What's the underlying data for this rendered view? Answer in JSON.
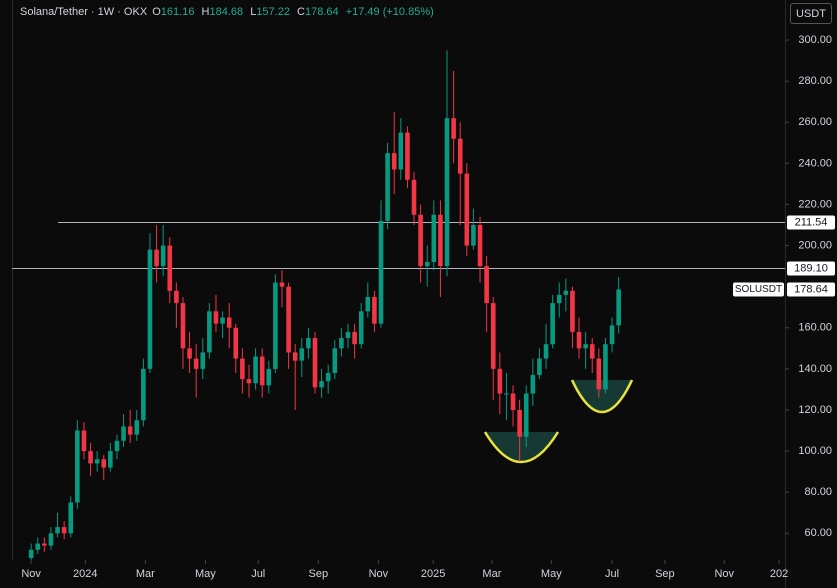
{
  "chart_data": {
    "type": "candlestick",
    "title": "Solana/Tether · 1W · OKX",
    "ohlc_labels": [
      "O",
      "H",
      "L",
      "C"
    ],
    "change": "+17.49 (+10.85%)",
    "currency": "USDT",
    "symbol": "SOLUSDT",
    "up_color": "#089981",
    "down_color": "#f23645",
    "x": [
      0,
      1,
      2,
      3,
      4,
      5,
      6,
      7,
      8,
      9,
      10,
      11,
      12,
      13,
      14,
      15,
      16,
      17,
      18,
      19,
      20,
      21,
      22,
      23,
      24,
      25,
      26,
      27,
      28,
      29,
      30,
      31,
      32,
      33,
      34,
      35,
      36,
      37,
      38,
      39,
      40,
      41,
      42,
      43,
      44,
      45,
      46,
      47,
      48,
      49,
      50,
      51,
      52,
      53,
      54,
      55,
      56,
      57,
      58,
      59,
      60,
      61,
      62,
      63,
      64,
      65,
      66,
      67,
      68,
      69,
      70,
      71,
      72,
      73,
      74,
      75,
      76,
      77,
      78,
      79,
      80,
      81,
      82,
      83,
      84,
      85,
      86,
      87,
      88,
      89
    ],
    "open": [
      48,
      52,
      55,
      54,
      60,
      63,
      60,
      75,
      110,
      100,
      94,
      96,
      92,
      100,
      105,
      112,
      108,
      115,
      140,
      198,
      190,
      200,
      178,
      172,
      150,
      145,
      140,
      148,
      168,
      162,
      165,
      160,
      145,
      135,
      133,
      146,
      132,
      140,
      182,
      180,
      148,
      144,
      150,
      155,
      131,
      134,
      138,
      150,
      155,
      158,
      152,
      168,
      175,
      162,
      212,
      245,
      237,
      255,
      232,
      215,
      190,
      192,
      215,
      190,
      262,
      252,
      235,
      200,
      210,
      190,
      172,
      140,
      128,
      128,
      120,
      107,
      128,
      137,
      145,
      152,
      172,
      176,
      178,
      158,
      150,
      152,
      145,
      130,
      152,
      161.16
    ],
    "high": [
      55,
      58,
      58,
      63,
      70,
      66,
      78,
      115,
      114,
      104,
      100,
      98,
      104,
      108,
      118,
      120,
      120,
      145,
      206,
      210,
      210,
      204,
      182,
      175,
      158,
      152,
      155,
      172,
      176,
      168,
      172,
      162,
      150,
      142,
      150,
      150,
      144,
      186,
      188,
      182,
      152,
      155,
      160,
      158,
      140,
      142,
      154,
      160,
      162,
      162,
      172,
      182,
      178,
      222,
      250,
      265,
      262,
      258,
      236,
      220,
      200,
      222,
      222,
      295,
      285,
      260,
      240,
      218,
      214,
      195,
      175,
      148,
      138,
      132,
      125,
      132,
      145,
      150,
      162,
      176,
      182,
      184,
      180,
      165,
      158,
      155,
      150,
      155,
      165,
      184.68
    ],
    "low": [
      47,
      50,
      51,
      52,
      58,
      57,
      58,
      72,
      96,
      88,
      90,
      86,
      90,
      96,
      102,
      104,
      105,
      112,
      138,
      182,
      185,
      172,
      160,
      140,
      138,
      126,
      135,
      145,
      158,
      155,
      150,
      138,
      128,
      126,
      130,
      126,
      128,
      138,
      170,
      140,
      120,
      136,
      145,
      128,
      126,
      128,
      135,
      146,
      150,
      145,
      150,
      165,
      158,
      160,
      208,
      225,
      232,
      228,
      210,
      182,
      180,
      188,
      175,
      185,
      240,
      210,
      195,
      198,
      182,
      158,
      125,
      118,
      115,
      112,
      95,
      102,
      122,
      135,
      140,
      150,
      165,
      168,
      150,
      145,
      140,
      138,
      126,
      128,
      148,
      157.22
    ],
    "close": [
      52,
      55,
      54,
      60,
      63,
      60,
      75,
      110,
      100,
      94,
      96,
      92,
      100,
      105,
      112,
      108,
      115,
      140,
      198,
      190,
      200,
      178,
      172,
      150,
      145,
      140,
      148,
      168,
      162,
      165,
      160,
      145,
      135,
      133,
      146,
      132,
      140,
      182,
      180,
      148,
      144,
      150,
      155,
      131,
      134,
      138,
      150,
      155,
      158,
      152,
      168,
      175,
      162,
      212,
      245,
      237,
      255,
      232,
      215,
      190,
      192,
      215,
      190,
      262,
      252,
      235,
      200,
      210,
      190,
      172,
      140,
      128,
      128,
      120,
      107,
      128,
      137,
      145,
      152,
      172,
      176,
      178,
      158,
      150,
      152,
      145,
      130,
      152,
      161.16,
      178.64
    ],
    "xlim": [
      -2.9,
      114.2
    ],
    "xticks": [
      {
        "value": 0,
        "label": "Nov"
      },
      {
        "value": 8.2,
        "label": "2024"
      },
      {
        "value": 17.3,
        "label": "Mar"
      },
      {
        "value": 26.4,
        "label": "May"
      },
      {
        "value": 34.4,
        "label": "Jul"
      },
      {
        "value": 43.5,
        "label": "Sep"
      },
      {
        "value": 52.6,
        "label": "Nov"
      },
      {
        "value": 60.9,
        "label": "2025"
      },
      {
        "value": 69.8,
        "label": "Mar"
      },
      {
        "value": 78.8,
        "label": "May"
      },
      {
        "value": 88,
        "label": "Jul"
      },
      {
        "value": 96,
        "label": "Sep"
      },
      {
        "value": 105,
        "label": "Nov"
      },
      {
        "value": 113.3,
        "label": "202"
      }
    ],
    "ylim": [
      47,
      319.5
    ],
    "yticks": [
      {
        "value": 60,
        "label": "60.00"
      },
      {
        "value": 80,
        "label": "80.00"
      },
      {
        "value": 100,
        "label": "100.00"
      },
      {
        "value": 120,
        "label": "120.00"
      },
      {
        "value": 140,
        "label": "140.00"
      },
      {
        "value": 160,
        "label": "160.00"
      },
      {
        "value": 200,
        "label": "200.00"
      },
      {
        "value": 220,
        "label": "220.00"
      },
      {
        "value": 240,
        "label": "240.00"
      },
      {
        "value": 260,
        "label": "260.00"
      },
      {
        "value": 280,
        "label": "280.00"
      },
      {
        "value": 300,
        "label": "300.00"
      }
    ],
    "levels": [
      211.54,
      {
        "value": 189.1,
        "label": "189.10"
      }
    ]
  }
}
